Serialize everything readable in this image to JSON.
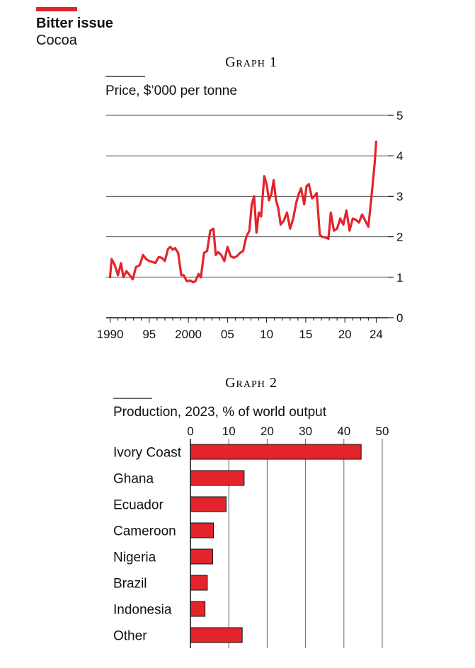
{
  "header": {
    "title": "Bitter issue",
    "subtitle": "Cocoa",
    "accent_color": "#e3242b"
  },
  "chart_data": [
    {
      "type": "line",
      "title": "Graph 1",
      "ylabel": "Price, $’000 per tonne",
      "ylim": [
        0,
        5
      ],
      "yticks": [
        0,
        1,
        2,
        3,
        4,
        5
      ],
      "xlim": [
        1989.5,
        2025.5
      ],
      "xticks": [
        1990,
        1995,
        2000,
        2005,
        2010,
        2015,
        2020,
        2024
      ],
      "xtick_labels": [
        "1990",
        "95",
        "2000",
        "05",
        "10",
        "15",
        "20",
        "24"
      ],
      "grid": true,
      "series": [
        {
          "name": "Cocoa price",
          "color": "#e3242b",
          "x": [
            1990.0,
            1990.2,
            1990.6,
            1991.0,
            1991.4,
            1991.7,
            1992.1,
            1992.5,
            1992.9,
            1993.3,
            1993.8,
            1994.2,
            1994.6,
            1995.0,
            1995.4,
            1995.8,
            1996.2,
            1996.6,
            1997.0,
            1997.4,
            1997.7,
            1998.0,
            1998.3,
            1998.7,
            1999.1,
            1999.4,
            1999.8,
            2000.2,
            2000.6,
            2000.9,
            2001.3,
            2001.6,
            2002.0,
            2002.4,
            2002.8,
            2003.2,
            2003.5,
            2003.8,
            2004.2,
            2004.6,
            2005.0,
            2005.4,
            2005.8,
            2006.2,
            2006.6,
            2007.0,
            2007.4,
            2007.8,
            2008.1,
            2008.4,
            2008.7,
            2009.0,
            2009.3,
            2009.7,
            2010.0,
            2010.3,
            2010.6,
            2010.9,
            2011.2,
            2011.5,
            2011.8,
            2012.2,
            2012.6,
            2013.0,
            2013.4,
            2013.8,
            2014.1,
            2014.4,
            2014.8,
            2015.1,
            2015.4,
            2015.8,
            2016.1,
            2016.4,
            2016.8,
            2017.1,
            2017.5,
            2017.9,
            2018.2,
            2018.6,
            2019.0,
            2019.4,
            2019.8,
            2020.2,
            2020.6,
            2021.0,
            2021.4,
            2021.8,
            2022.2,
            2022.6,
            2023.0,
            2023.4,
            2023.8,
            2024.0
          ],
          "y": [
            1.0,
            1.45,
            1.3,
            1.05,
            1.35,
            1.0,
            1.15,
            1.05,
            0.95,
            1.25,
            1.3,
            1.55,
            1.45,
            1.4,
            1.38,
            1.35,
            1.5,
            1.48,
            1.4,
            1.7,
            1.75,
            1.68,
            1.72,
            1.6,
            1.05,
            1.05,
            0.9,
            0.92,
            0.88,
            0.9,
            1.08,
            1.0,
            1.6,
            1.65,
            2.15,
            2.2,
            1.55,
            1.62,
            1.55,
            1.4,
            1.75,
            1.52,
            1.48,
            1.52,
            1.6,
            1.65,
            2.0,
            2.15,
            2.8,
            3.0,
            2.1,
            2.6,
            2.5,
            3.5,
            3.3,
            2.9,
            3.05,
            3.4,
            2.9,
            2.7,
            2.3,
            2.4,
            2.6,
            2.2,
            2.45,
            2.85,
            3.05,
            3.2,
            2.8,
            3.25,
            3.3,
            2.95,
            3.0,
            3.08,
            2.05,
            2.0,
            1.98,
            1.95,
            2.6,
            2.15,
            2.2,
            2.45,
            2.3,
            2.65,
            2.15,
            2.45,
            2.42,
            2.35,
            2.55,
            2.4,
            2.25,
            3.0,
            3.8,
            4.35
          ]
        }
      ]
    },
    {
      "type": "bar",
      "orientation": "horizontal",
      "title": "Graph 2",
      "xlabel": "Production, 2023, % of world output",
      "xlim": [
        0,
        50
      ],
      "xticks": [
        0,
        10,
        20,
        30,
        40,
        50
      ],
      "categories": [
        "Ivory Coast",
        "Ghana",
        "Ecuador",
        "Cameroon",
        "Nigeria",
        "Brazil",
        "Indonesia",
        "Other"
      ],
      "values": [
        44.5,
        14.0,
        9.3,
        6.0,
        5.8,
        4.4,
        3.8,
        13.5
      ],
      "bar_color": "#e3242b"
    }
  ]
}
